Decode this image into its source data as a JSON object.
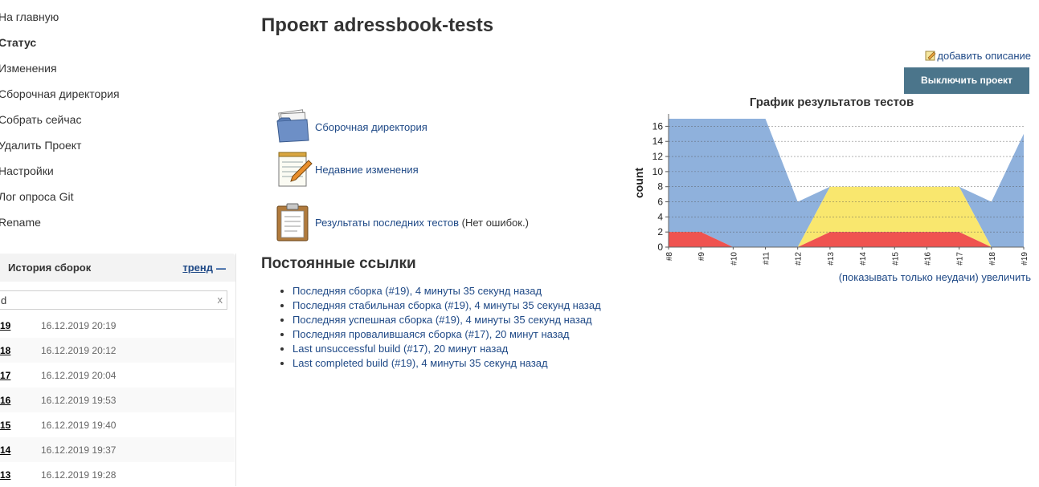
{
  "sidebar": {
    "items": [
      {
        "label": "На главную"
      },
      {
        "label": "Статус"
      },
      {
        "label": "Изменения"
      },
      {
        "label": "Сборочная директория"
      },
      {
        "label": "Собрать сейчас"
      },
      {
        "label": "Удалить Проект"
      },
      {
        "label": "Настройки"
      },
      {
        "label": "Лог опроса Git"
      },
      {
        "label": "Rename"
      }
    ]
  },
  "history": {
    "title": "История сборок",
    "trend_label": "тренд",
    "filter_value": "d",
    "clear_label": "x",
    "builds": [
      {
        "num": "19",
        "date": "16.12.2019 20:19"
      },
      {
        "num": "18",
        "date": "16.12.2019 20:12"
      },
      {
        "num": "17",
        "date": "16.12.2019 20:04"
      },
      {
        "num": "16",
        "date": "16.12.2019 19:53"
      },
      {
        "num": "15",
        "date": "16.12.2019 19:40"
      },
      {
        "num": "14",
        "date": "16.12.2019 19:37"
      },
      {
        "num": "13",
        "date": "16.12.2019 19:28"
      }
    ]
  },
  "main": {
    "title": "Проект adressbook-tests",
    "add_description": "добавить описание",
    "disable_button": "Выключить проект",
    "links": {
      "workspace": "Сборочная директория",
      "changes": "Недавние изменения",
      "test_results": "Результаты последних тестов",
      "test_results_note": " (Нет ошибок.)"
    },
    "permalinks_title": "Постоянные ссылки",
    "permalinks": [
      "Последняя сборка (#19), 4 минуты 35 секунд назад",
      "Последняя стабильная сборка (#19), 4 минуты 35 секунд назад",
      "Последняя успешная сборка (#19), 4 минуты 35 секунд назад",
      "Последняя провалившаяся сборка (#17), 20 минут назад",
      "Last unsuccessful build (#17), 20 минут назад",
      "Last completed build (#19), 4 минуты 35 секунд назад"
    ],
    "chart_footer": {
      "failures_only": "(показывать только неудачи)",
      "enlarge": "увеличить"
    }
  },
  "colors": {
    "passed": "#8fb1dc",
    "skipped": "#f9e76e",
    "failed": "#ef5350",
    "button": "#4b758b",
    "link": "#204a87"
  },
  "chart_data": {
    "type": "area",
    "title": "График результатов тестов",
    "ylabel": "count",
    "xlabel": "",
    "categories": [
      "#8",
      "#9",
      "#10",
      "#11",
      "#12",
      "#13",
      "#14",
      "#15",
      "#16",
      "#17",
      "#18",
      "#19"
    ],
    "ylim": [
      0,
      17
    ],
    "yticks": [
      0,
      2,
      4,
      6,
      8,
      10,
      12,
      14,
      16
    ],
    "series": [
      {
        "key": "failed",
        "values": [
          2,
          2,
          0,
          0,
          0,
          2,
          2,
          2,
          2,
          2,
          0,
          0
        ]
      },
      {
        "key": "skipped",
        "values": [
          0,
          0,
          0,
          0,
          0,
          6,
          6,
          6,
          6,
          6,
          0,
          0
        ]
      },
      {
        "key": "passed",
        "values": [
          15,
          15,
          17,
          17,
          6,
          0,
          0,
          0,
          0,
          0,
          6,
          15
        ]
      }
    ]
  }
}
